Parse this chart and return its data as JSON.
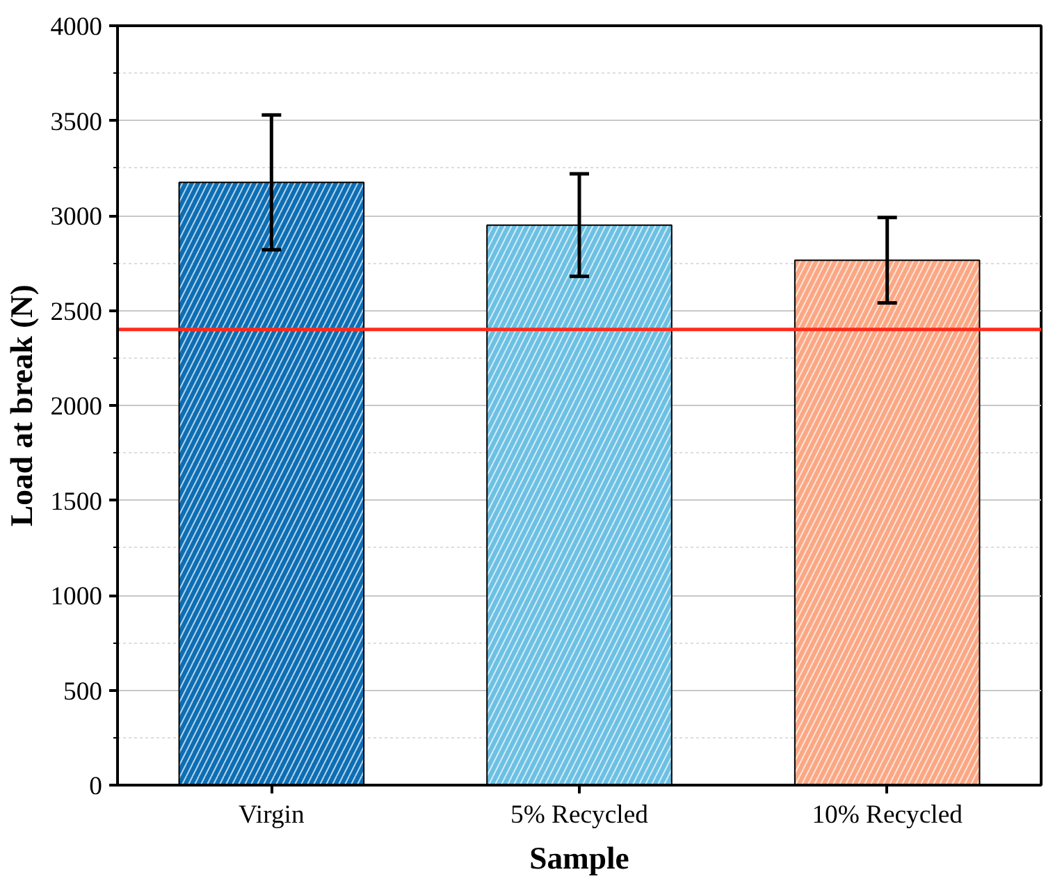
{
  "chart_data": {
    "type": "bar",
    "xlabel": "Sample",
    "ylabel": "Load at break (N)",
    "categories": [
      "Virgin",
      "5% Recycled",
      "10% Recycled"
    ],
    "values": [
      3175,
      2950,
      2765
    ],
    "colors": [
      "#0d6eb4",
      "#6cc0e3",
      "#fba784"
    ],
    "errors": [
      355,
      270,
      225
    ],
    "ylim": [
      0,
      4000
    ],
    "yticks": [
      0,
      500,
      1000,
      1500,
      2000,
      2500,
      3000,
      3500,
      4000
    ],
    "grid": "y",
    "ref_lines": [
      {
        "axis": "y",
        "value": 2400,
        "color": "#ff2a1a"
      }
    ]
  }
}
